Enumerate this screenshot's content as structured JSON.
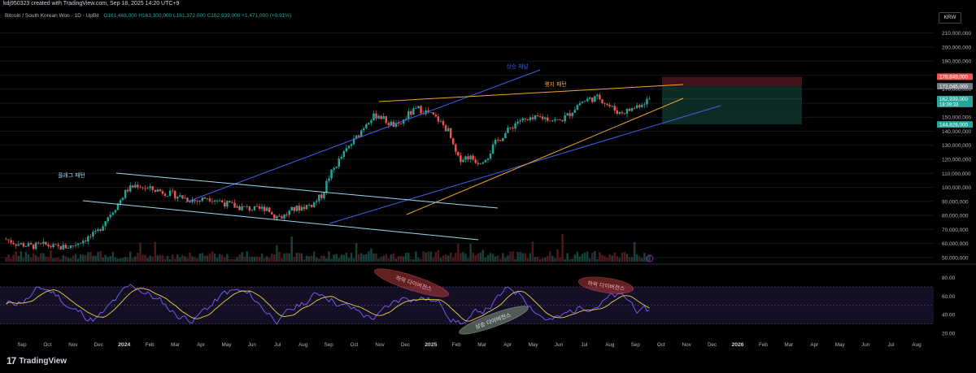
{
  "header": {
    "created_by": "kdj950323 created with TradingView.com, Sep 18, 2025 14:20 UTC+9",
    "symbol": "Bitcoin / South Korean Won · 1D · UpBit",
    "ohlc": "O161,468,000 H163,300,000 L161,372,000 C162,939,000 +1,471,000 (+0.91%)",
    "currency": "KRW"
  },
  "colors": {
    "up": "#26a69a",
    "down": "#ef5350",
    "channel_line": "#3f5fe6",
    "flag_line": "#9ad8f0",
    "wedge_line": "#f5a623",
    "rsi_line": "#7b61ff",
    "rsi_ma": "#e8d04a"
  },
  "chart_data": [
    {
      "type": "candlestick",
      "x_ticks": [
        "Sep",
        "Oct",
        "Nov",
        "Dec",
        "2024",
        "Feb",
        "Mar",
        "Apr",
        "May",
        "Jun",
        "Jul",
        "Aug",
        "Sep",
        "Oct",
        "Nov",
        "Dec",
        "2025",
        "Feb",
        "Mar",
        "Apr",
        "May",
        "Jun",
        "Jul",
        "Aug",
        "Sep",
        "Oct",
        "Nov",
        "Dec",
        "2026",
        "Feb",
        "Mar",
        "Apr",
        "May",
        "Jun",
        "Jul",
        "Aug"
      ],
      "y_ticks": [
        "210,000,000",
        "200,000,000",
        "190,000,000",
        "180,000,000",
        "170,000,000",
        "160,000,000",
        "150,000,000",
        "140,000,000",
        "130,000,000",
        "120,000,000",
        "110,000,000",
        "100,000,000",
        "90,000,000",
        "80,000,000",
        "70,000,000",
        "60,000,000",
        "50,000,000"
      ],
      "price_labels": [
        {
          "text": "178,849,000",
          "value": 178849000,
          "color": "#ef5350"
        },
        {
          "text": "172,045,000",
          "value": 172045000,
          "color": "#787b86"
        },
        {
          "text": "162,939,000",
          "subtext": "18:39:33",
          "value": 162939000,
          "color": "#26a69a"
        },
        {
          "text": "144,828,000",
          "value": 144828000,
          "color": "#26a69a"
        }
      ],
      "annotations": [
        "상승 채널",
        "웻지 패턴",
        "플래그 패턴"
      ],
      "price_path": [
        [
          0,
          63
        ],
        [
          0.02,
          60
        ],
        [
          0.05,
          58
        ],
        [
          0.08,
          59
        ],
        [
          0.1,
          57
        ],
        [
          0.13,
          58
        ],
        [
          0.15,
          62
        ],
        [
          0.18,
          67
        ],
        [
          0.2,
          78
        ],
        [
          0.22,
          87
        ],
        [
          0.24,
          98
        ],
        [
          0.26,
          102
        ],
        [
          0.28,
          99
        ],
        [
          0.3,
          98
        ],
        [
          0.32,
          96
        ],
        [
          0.34,
          94
        ],
        [
          0.36,
          92
        ],
        [
          0.38,
          90
        ],
        [
          0.4,
          93
        ],
        [
          0.42,
          91
        ],
        [
          0.44,
          88
        ],
        [
          0.46,
          86
        ],
        [
          0.48,
          85
        ],
        [
          0.5,
          84
        ],
        [
          0.52,
          86
        ],
        [
          0.53,
          80
        ],
        [
          0.55,
          79
        ],
        [
          0.57,
          84
        ],
        [
          0.59,
          86
        ],
        [
          0.61,
          88
        ],
        [
          0.63,
          95
        ],
        [
          0.64,
          106
        ],
        [
          0.66,
          118
        ],
        [
          0.68,
          128
        ],
        [
          0.7,
          137
        ],
        [
          0.72,
          148
        ],
        [
          0.74,
          152
        ],
        [
          0.76,
          146
        ],
        [
          0.78,
          143
        ],
        [
          0.8,
          152
        ],
        [
          0.82,
          156
        ],
        [
          0.84,
          153
        ],
        [
          0.86,
          148
        ],
        [
          0.88,
          140
        ],
        [
          0.89,
          128
        ],
        [
          0.9,
          120
        ],
        [
          0.92,
          122
        ],
        [
          0.94,
          118
        ],
        [
          0.96,
          123
        ],
        [
          0.97,
          130
        ],
        [
          0.98,
          134
        ],
        [
          1.0,
          141
        ],
        [
          1.02,
          148
        ],
        [
          1.04,
          147
        ],
        [
          1.06,
          150
        ],
        [
          1.08,
          149
        ],
        [
          1.1,
          147
        ],
        [
          1.12,
          152
        ],
        [
          1.14,
          160
        ],
        [
          1.16,
          163
        ],
        [
          1.18,
          164
        ],
        [
          1.2,
          158
        ],
        [
          1.22,
          153
        ],
        [
          1.24,
          155
        ],
        [
          1.26,
          159
        ],
        [
          1.28,
          163
        ]
      ]
    },
    {
      "type": "line",
      "y_ticks": [
        "80.00",
        "60.00",
        "40.00",
        "20.00"
      ],
      "ylim": [
        20,
        85
      ],
      "annotations": [
        "하락 다이버전스",
        "상승 다이버전스",
        "하락 다이버전스"
      ]
    }
  ]
}
